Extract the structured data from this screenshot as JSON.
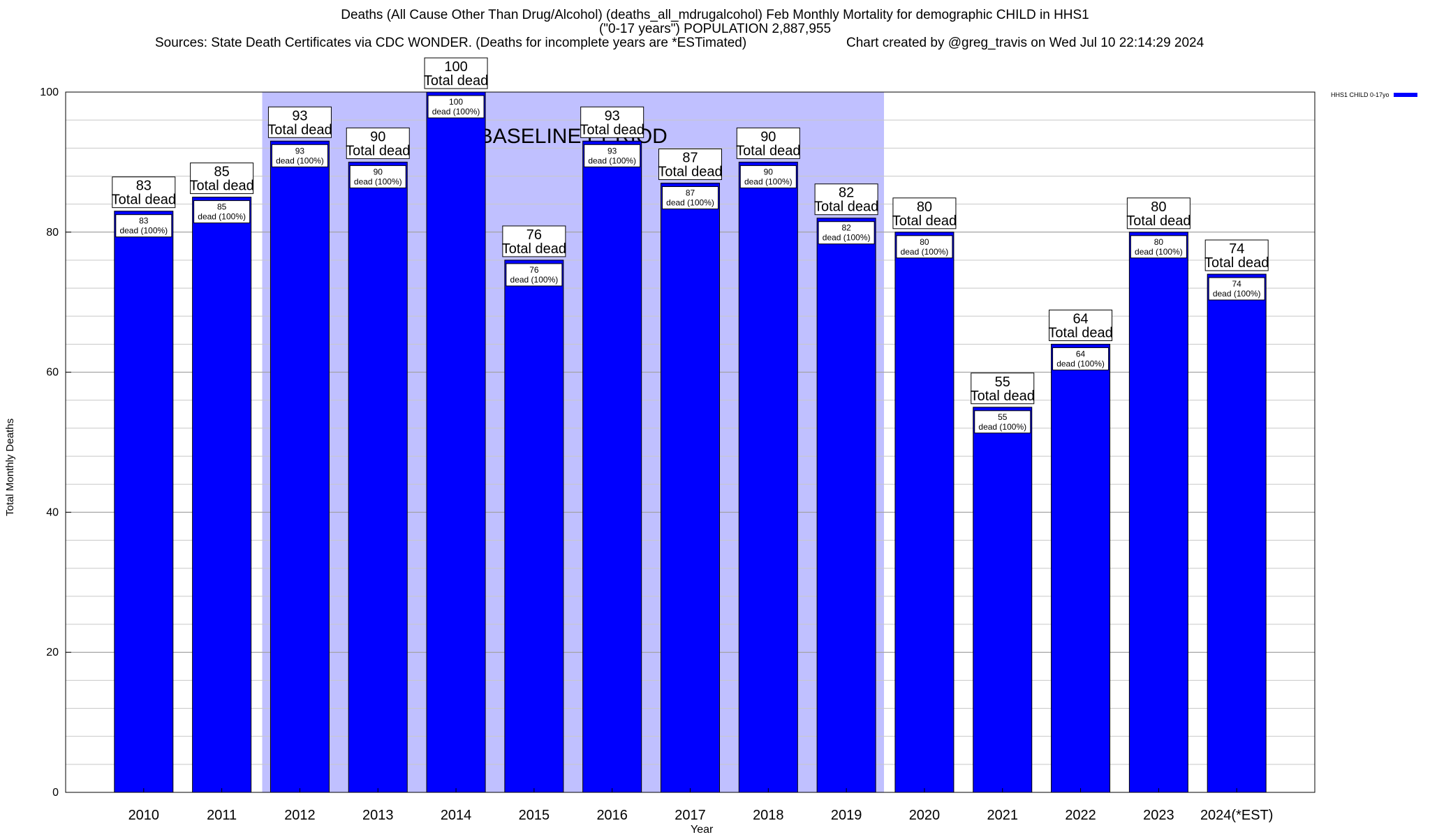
{
  "header": {
    "title_line1": "Deaths (All Cause Other Than Drug/Alcohol) (deaths_all_mdrugalcohol) Feb Monthly Mortality for demographic CHILD in HHS1",
    "title_line2": "(\"0-17 years\") POPULATION 2,887,955",
    "sources": "Sources: State Death Certificates via CDC WONDER. (Deaths for incomplete years are *ESTimated)",
    "credit": "Chart created by @greg_travis on Wed Jul 10 22:14:29 2024"
  },
  "chart_data": {
    "type": "bar",
    "title": "Deaths (All Cause Other Than Drug/Alcohol) (deaths_all_mdrugalcohol) Feb Monthly Mortality for demographic CHILD in HHS1",
    "xlabel": "Year",
    "ylabel": "Total Monthly Deaths",
    "ylim": [
      0,
      100
    ],
    "yticks": [
      0,
      20,
      40,
      60,
      80,
      100
    ],
    "grid": true,
    "legend_position": "top-right",
    "categories": [
      "2010",
      "2011",
      "2012",
      "2013",
      "2014",
      "2015",
      "2016",
      "2017",
      "2018",
      "2019",
      "2020",
      "2021",
      "2022",
      "2023",
      "2024(*EST)"
    ],
    "series": [
      {
        "name": "HHS1 CHILD 0-17yo",
        "color": "#0000ff",
        "values": [
          83,
          85,
          93,
          90,
          100,
          76,
          93,
          87,
          90,
          82,
          80,
          55,
          64,
          80,
          74
        ]
      }
    ],
    "top_label_suffix": "Total dead",
    "inner_label_suffix": "dead (100%)",
    "baseline": {
      "label": "BASELINE PERIOD",
      "start": "2012",
      "end": "2019",
      "color": "#c0c0ff"
    }
  }
}
